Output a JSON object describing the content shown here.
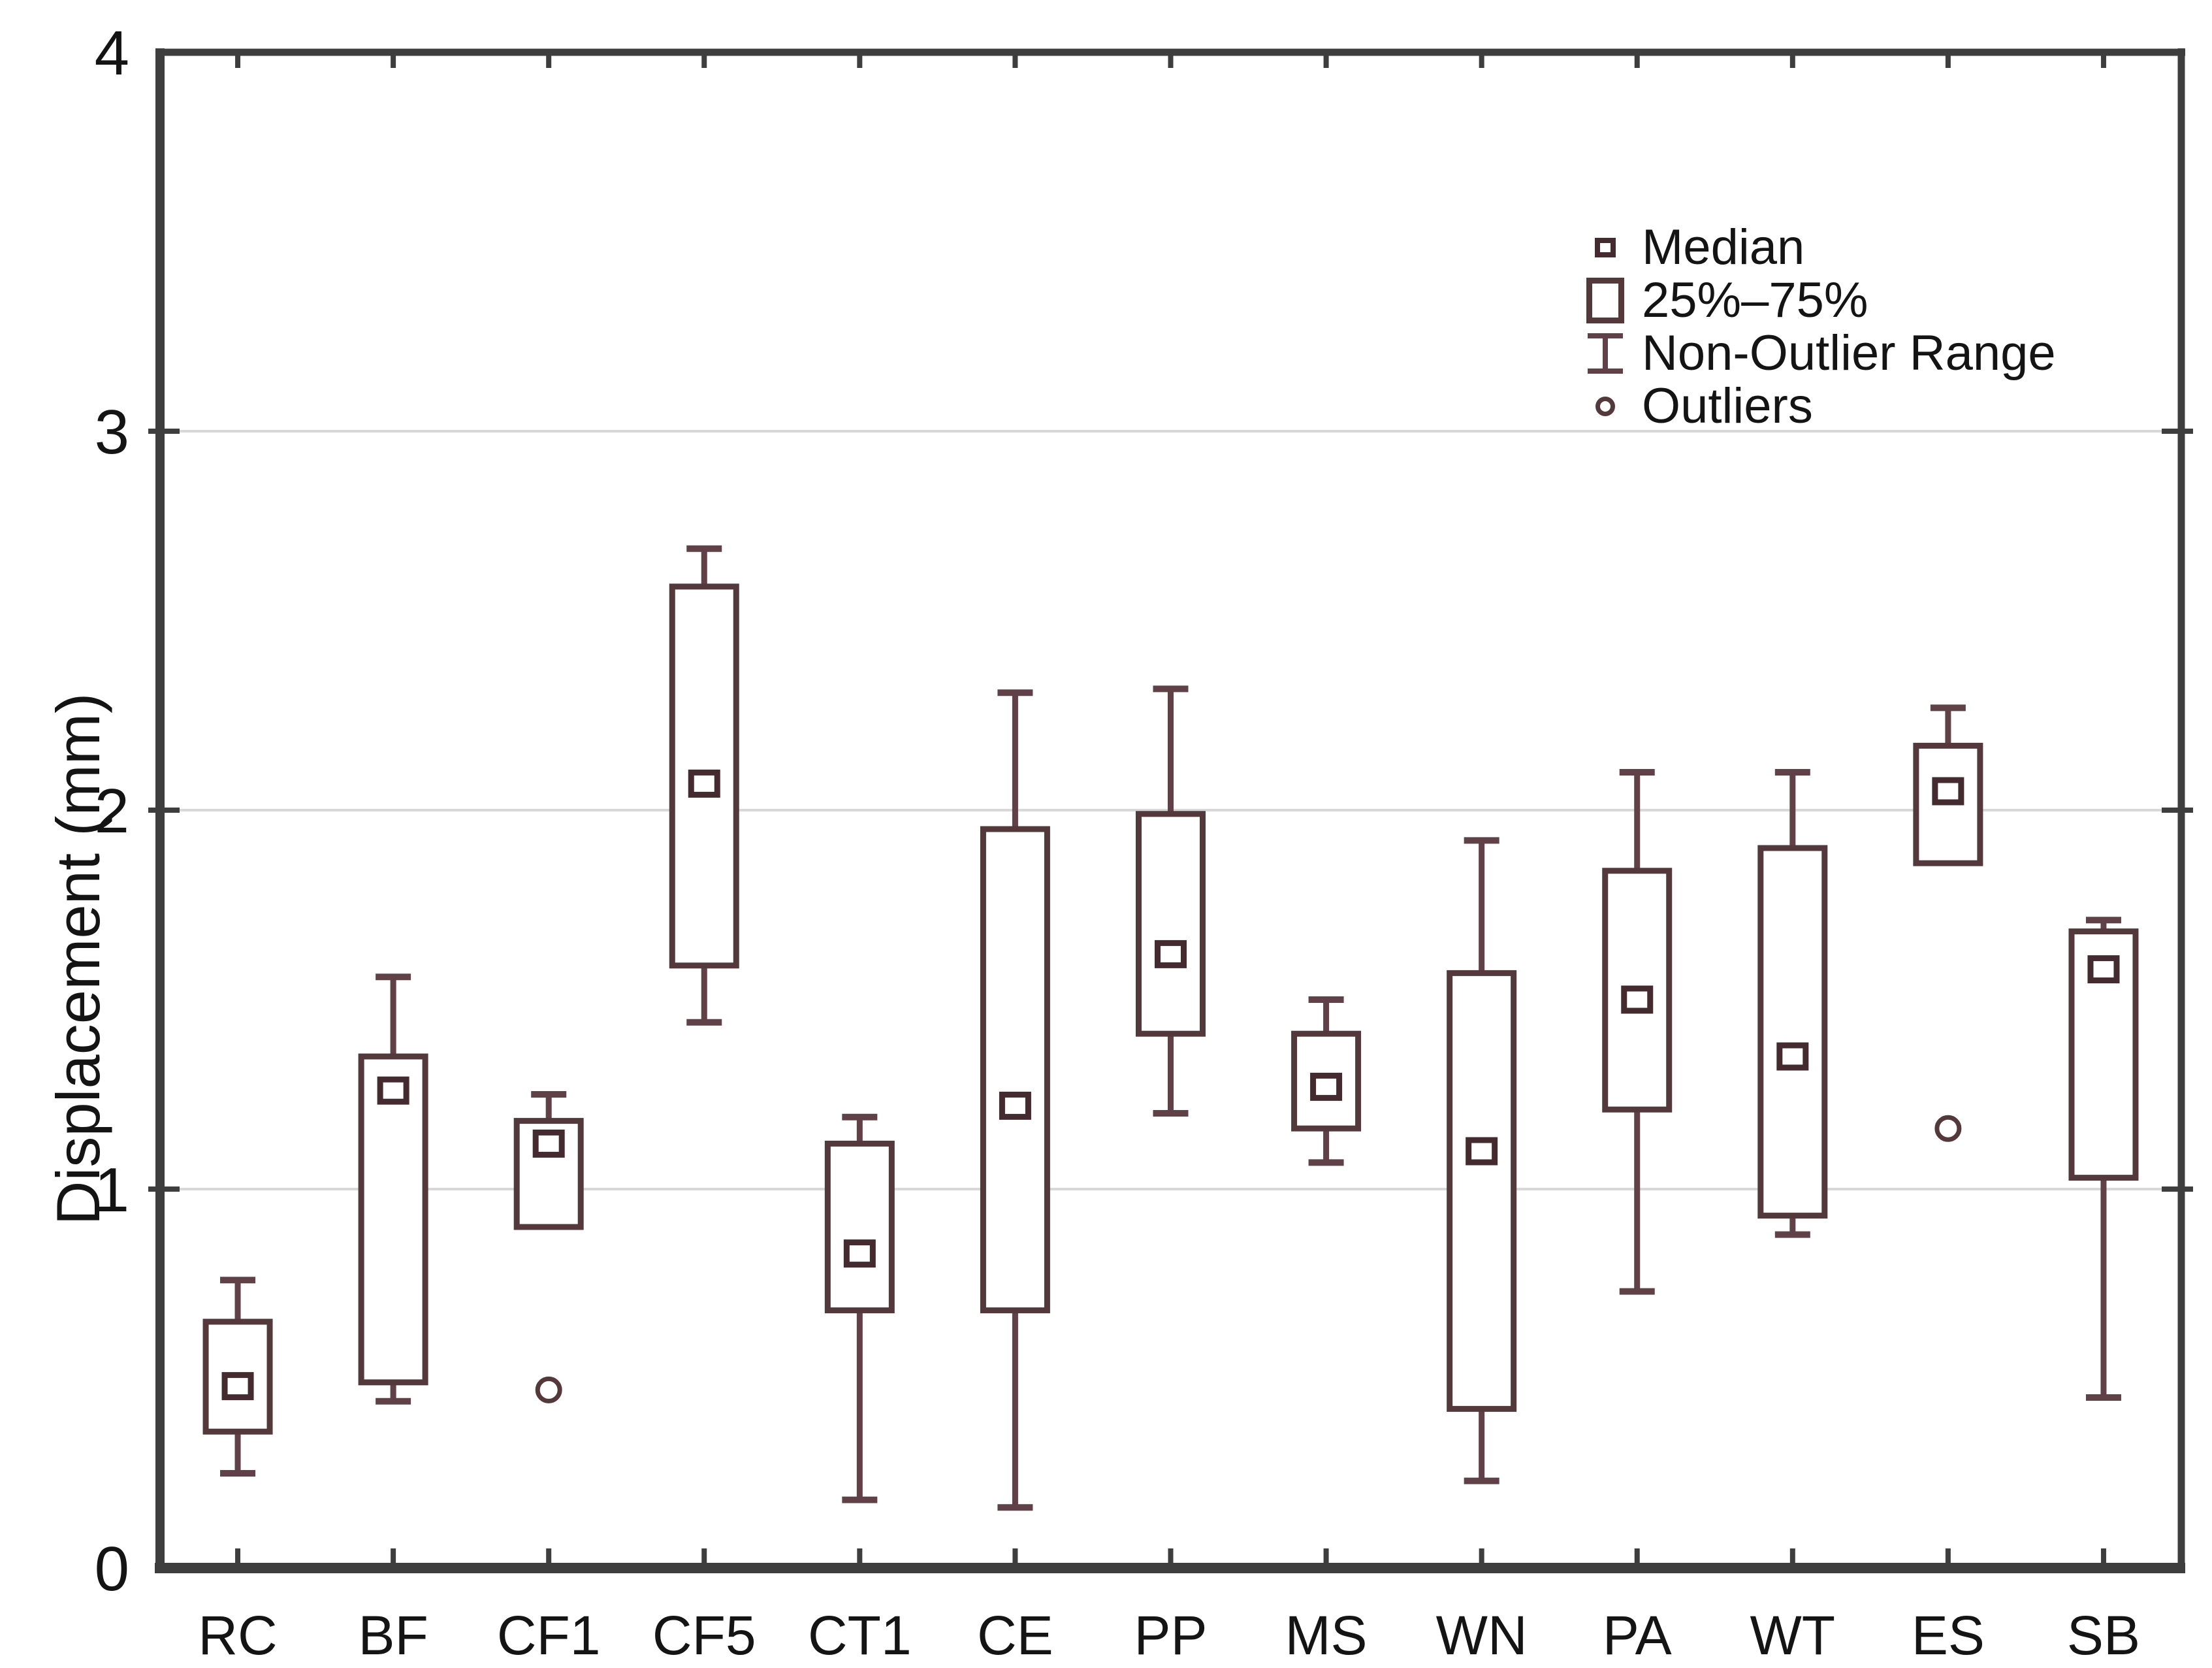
{
  "figure": {
    "background": "#ffffff"
  },
  "chart_data": {
    "type": "box",
    "title": "",
    "ylabel": "Displacement (mm)",
    "xlabel": "",
    "ylim": [
      0,
      4
    ],
    "yticks": [
      0,
      1,
      2,
      3,
      4
    ],
    "gridlines": [
      1,
      2,
      3
    ],
    "grid": "horizontal",
    "legend_position": "top-right-inside",
    "categories": [
      "RC",
      "BF",
      "CF1",
      "CF5",
      "CT1",
      "CE",
      "PP",
      "MS",
      "WN",
      "PA",
      "WT",
      "ES",
      "SB"
    ],
    "series": [
      {
        "name": "RC",
        "low": 0.25,
        "q1": 0.36,
        "median": 0.48,
        "q3": 0.65,
        "high": 0.76,
        "outliers": []
      },
      {
        "name": "BF",
        "low": 0.44,
        "q1": 0.49,
        "median": 1.26,
        "q3": 1.35,
        "high": 1.56,
        "outliers": []
      },
      {
        "name": "CF1",
        "low": 0.9,
        "q1": 0.9,
        "median": 1.12,
        "q3": 1.18,
        "high": 1.25,
        "outliers": [
          0.47
        ]
      },
      {
        "name": "CF5",
        "low": 1.44,
        "q1": 1.59,
        "median": 2.07,
        "q3": 2.59,
        "high": 2.69,
        "outliers": []
      },
      {
        "name": "CT1",
        "low": 0.18,
        "q1": 0.68,
        "median": 0.83,
        "q3": 1.12,
        "high": 1.19,
        "outliers": []
      },
      {
        "name": "CE",
        "low": 0.16,
        "q1": 0.68,
        "median": 1.22,
        "q3": 1.95,
        "high": 2.31,
        "outliers": []
      },
      {
        "name": "PP",
        "low": 1.2,
        "q1": 1.41,
        "median": 1.62,
        "q3": 1.99,
        "high": 2.32,
        "outliers": []
      },
      {
        "name": "MS",
        "low": 1.07,
        "q1": 1.16,
        "median": 1.27,
        "q3": 1.41,
        "high": 1.5,
        "outliers": []
      },
      {
        "name": "WN",
        "low": 0.23,
        "q1": 0.42,
        "median": 1.1,
        "q3": 1.57,
        "high": 1.92,
        "outliers": []
      },
      {
        "name": "PA",
        "low": 0.73,
        "q1": 1.21,
        "median": 1.5,
        "q3": 1.84,
        "high": 2.1,
        "outliers": []
      },
      {
        "name": "WT",
        "low": 0.88,
        "q1": 0.93,
        "median": 1.35,
        "q3": 1.9,
        "high": 2.1,
        "outliers": []
      },
      {
        "name": "ES",
        "low": 1.86,
        "q1": 1.86,
        "median": 2.05,
        "q3": 2.17,
        "high": 2.27,
        "outliers": [
          1.16
        ]
      },
      {
        "name": "SB",
        "low": 0.45,
        "q1": 1.03,
        "median": 1.58,
        "q3": 1.68,
        "high": 1.71,
        "outliers": []
      }
    ]
  },
  "legend": {
    "items": [
      {
        "label": "Median",
        "marker": "median-square"
      },
      {
        "label": "25%–75%",
        "marker": "iqr-box"
      },
      {
        "label": "Non-Outlier Range",
        "marker": "whisker-ibeam"
      },
      {
        "label": "Outliers",
        "marker": "outlier-circle"
      }
    ]
  },
  "colors": {
    "box_stroke": "#53383c",
    "whisker_stroke": "#5f4147",
    "median_stroke": "#442b30",
    "outlier_stroke": "#53383c",
    "box_fill": "#ffffff",
    "axis": "#3e3e3e",
    "grid": "#d8d8d8",
    "text": "#141414",
    "background": "#ffffff"
  }
}
